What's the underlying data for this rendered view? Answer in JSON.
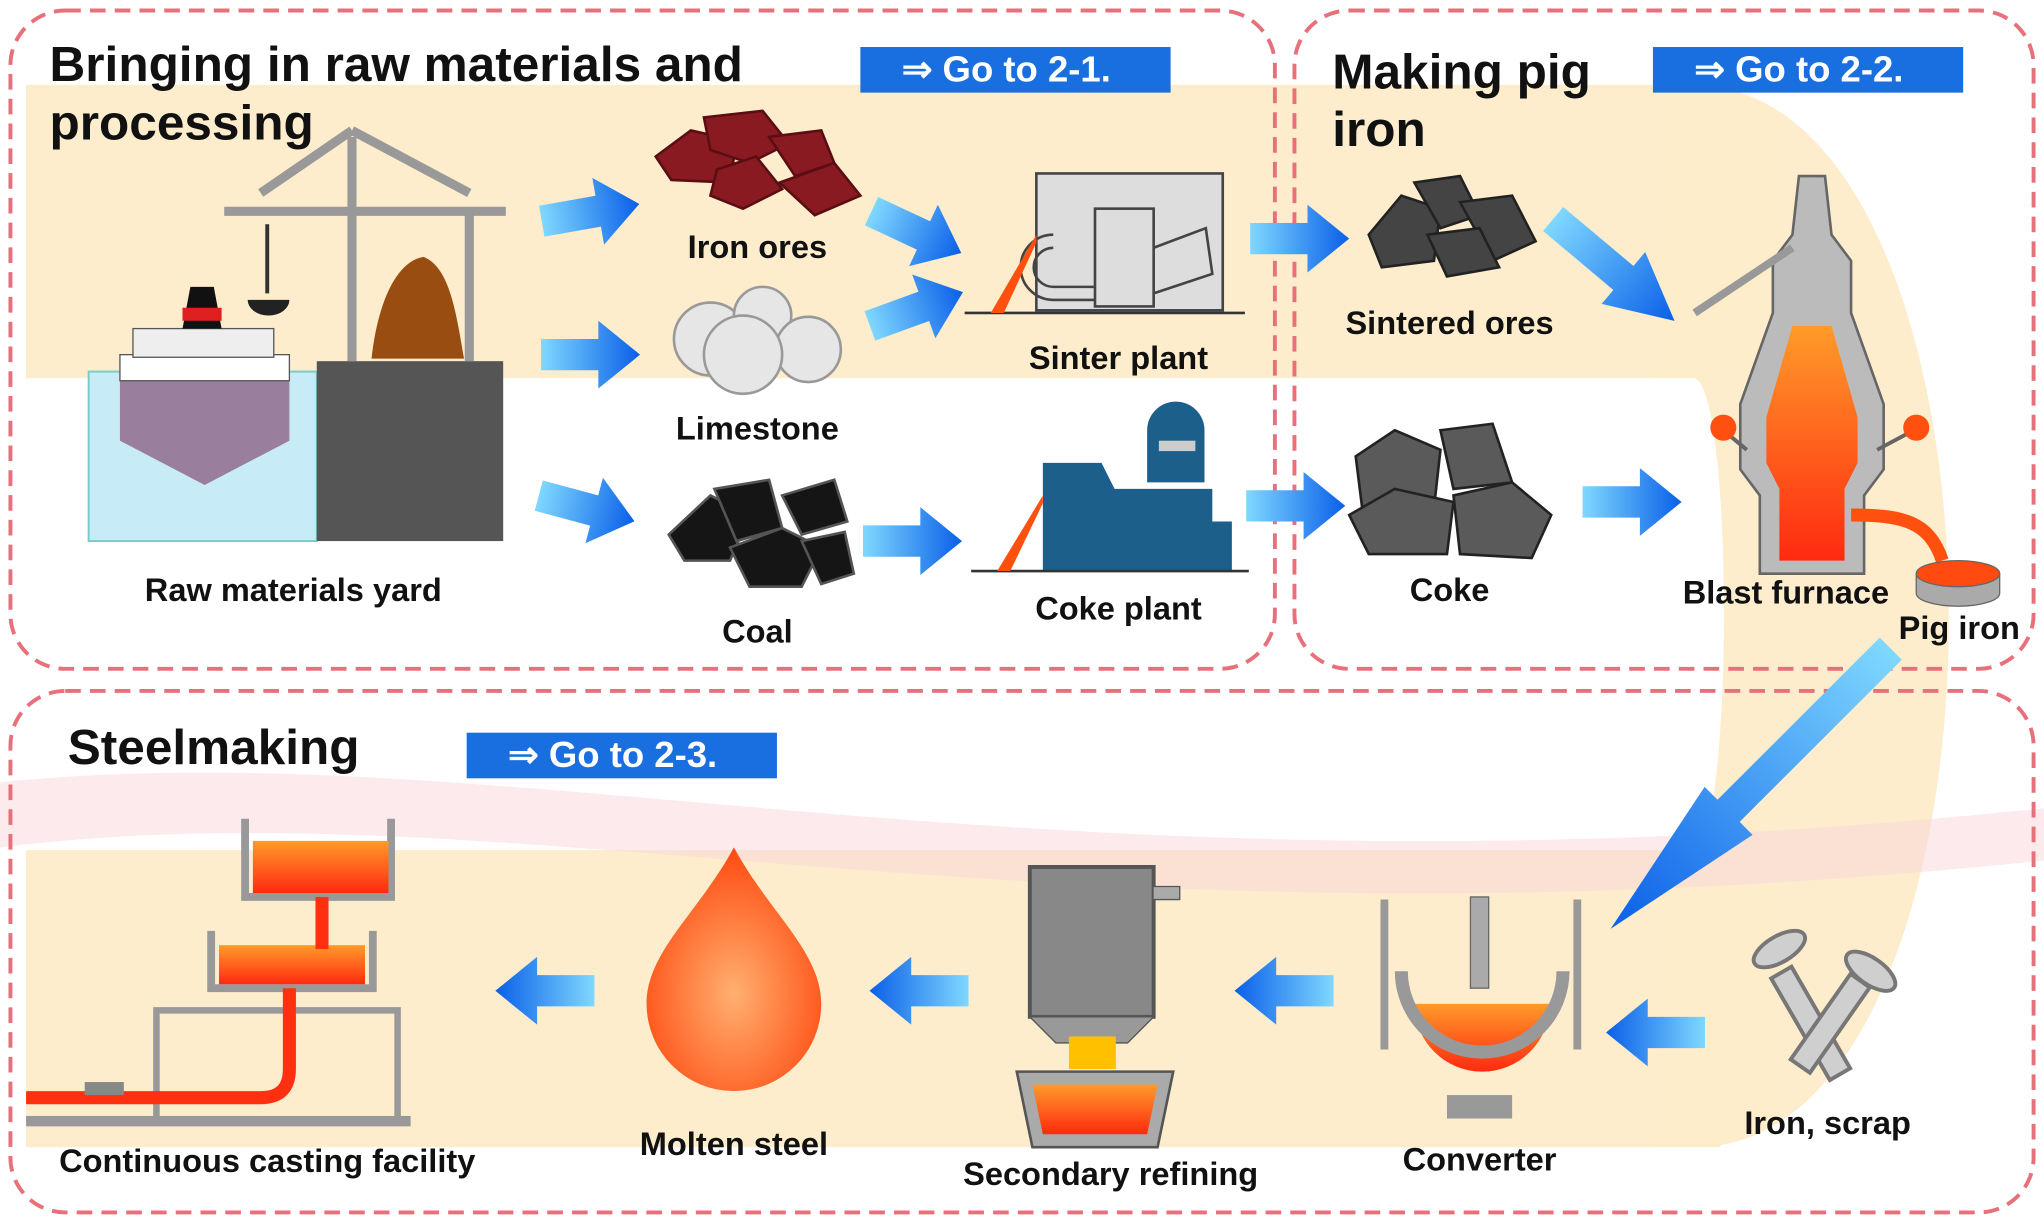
{
  "sections": [
    {
      "title_lines": [
        "Bringing in raw materials and",
        "processing"
      ],
      "link": "⇒ Go to 2-1."
    },
    {
      "title_lines": [
        "Making pig",
        "iron"
      ],
      "link": "⇒ Go to 2-2."
    },
    {
      "title_lines": [
        "Steelmaking"
      ],
      "link": "⇒ Go to 2-3."
    }
  ],
  "nodes": [
    {
      "label": "Raw materials yard"
    },
    {
      "label": "Iron ores"
    },
    {
      "label": "Limestone"
    },
    {
      "label": "Coal"
    },
    {
      "label": "Sinter plant"
    },
    {
      "label": "Coke plant"
    },
    {
      "label": "Sintered ores"
    },
    {
      "label": "Coke"
    },
    {
      "label": "Blast furnace"
    },
    {
      "label": "Pig iron"
    },
    {
      "label": "Iron, scrap"
    },
    {
      "label": "Converter"
    },
    {
      "label": "Secondary refining"
    },
    {
      "label": "Molten steel"
    },
    {
      "label": "Continuous casting facility"
    }
  ]
}
